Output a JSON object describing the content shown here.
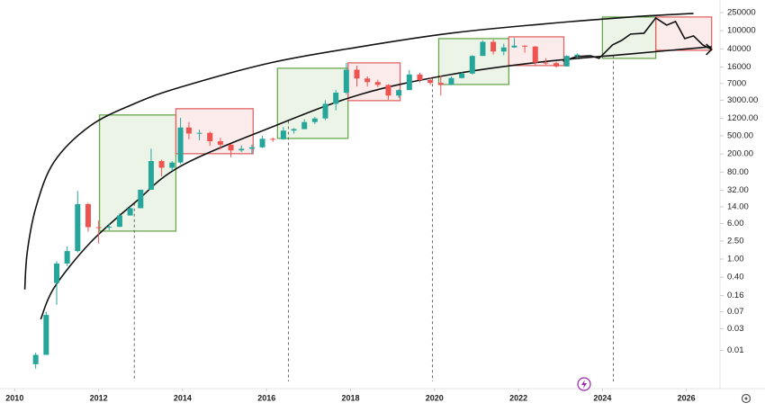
{
  "chart_data": {
    "type": "candlestick",
    "log_y": true,
    "xlim": [
      2009.65,
      2026.8
    ],
    "ylim": [
      0.0016,
      470000
    ],
    "xticks": [
      2010,
      2012,
      2014,
      2016,
      2018,
      2020,
      2022,
      2024,
      2026
    ],
    "yticks": [
      250000,
      100000,
      40000,
      16000,
      7000,
      {
        "value": 3000,
        "label": "3000.00"
      },
      {
        "value": 1200,
        "label": "1200.00"
      },
      {
        "value": 500,
        "label": "500.00"
      },
      {
        "value": 200,
        "label": "200.00"
      },
      {
        "value": 80,
        "label": "80.00"
      },
      {
        "value": 32,
        "label": "32.00"
      },
      {
        "value": 14,
        "label": "14.00"
      },
      {
        "value": 6,
        "label": "6.00"
      },
      {
        "value": 2.5,
        "label": "2.50"
      },
      {
        "value": 1,
        "label": "1.00"
      },
      {
        "value": 0.4,
        "label": "0.40"
      },
      0.16,
      0.07,
      0.03,
      0.01
    ],
    "up_color": "#26a69a",
    "down_color": "#ef5350",
    "x": [
      2010.5,
      2010.75,
      2011.0,
      2011.25,
      2011.5,
      2011.75,
      2012.0,
      2012.25,
      2012.5,
      2012.75,
      2013.0,
      2013.25,
      2013.5,
      2013.75,
      2013.95,
      2014.15,
      2014.4,
      2014.65,
      2014.9,
      2015.15,
      2015.4,
      2015.65,
      2015.9,
      2016.15,
      2016.4,
      2016.65,
      2016.9,
      2017.15,
      2017.4,
      2017.65,
      2017.9,
      2018.15,
      2018.4,
      2018.65,
      2018.9,
      2019.15,
      2019.4,
      2019.65,
      2019.9,
      2020.15,
      2020.4,
      2020.65,
      2020.9,
      2021.15,
      2021.4,
      2021.65,
      2021.9,
      2022.15,
      2022.4,
      2022.65,
      2022.9,
      2023.15,
      2023.4
    ],
    "open": [
      0.005,
      0.008,
      0.3,
      0.8,
      1.5,
      16,
      5,
      4.9,
      5.1,
      9,
      13,
      33,
      140,
      100,
      130,
      760,
      560,
      580,
      380,
      320,
      240,
      260,
      280,
      430,
      420,
      650,
      700,
      1000,
      1200,
      2500,
      4400,
      14000,
      9000,
      7500,
      6500,
      3800,
      5000,
      11000,
      8300,
      7200,
      6500,
      9200,
      11500,
      28000,
      57000,
      35000,
      43000,
      47000,
      45000,
      20000,
      19500,
      16500,
      28000
    ],
    "high": [
      0.009,
      0.07,
      0.9,
      1.9,
      31,
      17,
      7,
      6,
      10,
      14,
      33,
      260,
      150,
      140,
      1240,
      1000,
      680,
      620,
      450,
      330,
      310,
      320,
      500,
      460,
      780,
      740,
      1150,
      1300,
      3000,
      5000,
      19800,
      17000,
      10000,
      8500,
      6700,
      5200,
      13800,
      12000,
      9500,
      10500,
      10000,
      12400,
      29000,
      61000,
      64000,
      52000,
      69000,
      48000,
      46000,
      25000,
      21000,
      29000,
      31800
    ],
    "low": [
      0.004,
      0.008,
      0.1,
      0.7,
      1.4,
      4,
      2.2,
      4.3,
      5,
      9,
      13,
      33,
      65,
      85,
      120,
      420,
      400,
      300,
      250,
      170,
      220,
      200,
      270,
      370,
      410,
      560,
      700,
      900,
      1100,
      1800,
      4000,
      6000,
      6000,
      5800,
      3100,
      3400,
      5000,
      7400,
      6500,
      3800,
      6400,
      9000,
      11000,
      28000,
      30000,
      29000,
      42000,
      33000,
      17600,
      18000,
      15500,
      16400,
      25000
    ],
    "close": [
      0.008,
      0.06,
      0.8,
      1.5,
      16,
      5,
      4.9,
      5.1,
      9,
      13,
      33,
      140,
      100,
      130,
      760,
      560,
      580,
      380,
      320,
      240,
      260,
      280,
      430,
      420,
      650,
      700,
      1000,
      1200,
      2500,
      4400,
      14000,
      9000,
      7500,
      6500,
      3800,
      5000,
      11000,
      8300,
      7200,
      6500,
      9200,
      11500,
      28000,
      57000,
      35000,
      43000,
      47000,
      45000,
      20000,
      19500,
      16500,
      28000,
      30000
    ],
    "forecast": {
      "color": "#111111",
      "x": [
        2023.06,
        2023.38,
        2023.71,
        2023.92,
        2024.24,
        2024.46,
        2024.67,
        2024.99,
        2025.27,
        2025.53,
        2025.74,
        2025.96,
        2026.17,
        2026.39,
        2026.6
      ],
      "values": [
        21630,
        27100,
        28380,
        24770,
        48870,
        61380,
        84330,
        88100,
        190500,
        132400,
        158900,
        67140,
        76900,
        48870,
        38990
      ]
    },
    "bands": [
      {
        "x": [
          2010.24,
          2010.3,
          2010.51,
          2010.94,
          2011.8,
          2012.87,
          2013.95,
          2016.09,
          2018.24,
          2020.38,
          2022.53,
          2024.67,
          2026.17
        ],
        "values": [
          0.216,
          1.45,
          14,
          135,
          828,
          2570,
          5810,
          19770,
          44670,
          88100,
          138700,
          199500,
          238800
        ]
      },
      {
        "x": [
          2010.62,
          2010.94,
          2011.8,
          2012.87,
          2013.95,
          2016.09,
          2018.24,
          2020.38,
          2022.53,
          2024.67,
          2026.6
        ],
        "values": [
          0.048,
          0.237,
          2.29,
          17.5,
          108,
          755,
          4050,
          10960,
          20650,
          31050,
          44670
        ]
      }
    ],
    "zones": [
      {
        "x0": 2012.02,
        "x1": 2013.84,
        "low": 4.1,
        "high": 1430,
        "color": "#6aa84f"
      },
      {
        "x0": 2013.84,
        "x1": 2015.68,
        "low": 203,
        "high": 1960,
        "color": "#e06666"
      },
      {
        "x0": 2016.26,
        "x1": 2017.94,
        "low": 439,
        "high": 15070,
        "color": "#6aa84f"
      },
      {
        "x0": 2017.94,
        "x1": 2019.18,
        "low": 2945,
        "high": 19770,
        "color": "#e06666"
      },
      {
        "x0": 2020.1,
        "x1": 2021.77,
        "low": 6650,
        "high": 67140,
        "color": "#6aa84f"
      },
      {
        "x0": 2021.77,
        "x1": 2023.08,
        "low": 17260,
        "high": 73450,
        "color": "#e06666"
      },
      {
        "x0": 2024.0,
        "x1": 2025.27,
        "low": 24770,
        "high": 199500,
        "color": "#6aa84f"
      },
      {
        "x0": 2025.27,
        "x1": 2026.6,
        "low": 37240,
        "high": 199500,
        "color": "#e06666"
      }
    ],
    "halvings": [
      2012.85,
      2016.52,
      2019.95,
      2024.26
    ]
  }
}
